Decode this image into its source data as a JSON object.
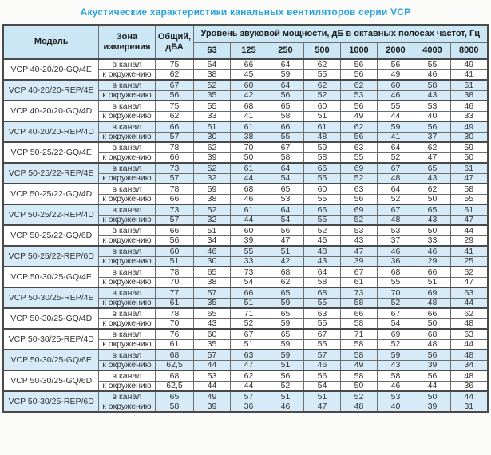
{
  "page": {
    "title": "Акустические характеристики канальных вентиляторов  серии VCP"
  },
  "colors": {
    "title_text": "#29a3db",
    "header_bg": "#cbe6f4",
    "shaded_row_bg": "#d6ebf7",
    "border_dark": "#4a4a4a",
    "border_light": "#a8a8a8",
    "cell_text": "#333333"
  },
  "table": {
    "headers": {
      "model": "Модель",
      "zone": "Зона измерения",
      "total": "Общий, дБА",
      "spl": "Уровень звуковой мощности, дБ в октавных полосах частот, Гц",
      "frequencies": [
        "63",
        "125",
        "250",
        "500",
        "1000",
        "2000",
        "4000",
        "8000"
      ]
    },
    "models": [
      {
        "name": "VCP 40-20/20-GQ/4E",
        "shaded": false,
        "rows": [
          {
            "zone": "в канал",
            "total": "75",
            "values": [
              54,
              66,
              64,
              62,
              56,
              56,
              55,
              49
            ]
          },
          {
            "zone": "к окружению",
            "total": "62",
            "values": [
              38,
              45,
              59,
              55,
              56,
              49,
              46,
              41
            ]
          }
        ]
      },
      {
        "name": "VCP 40-20/20-REP/4E",
        "shaded": true,
        "rows": [
          {
            "zone": "в канал",
            "total": "67",
            "values": [
              52,
              60,
              64,
              62,
              62,
              60,
              58,
              51
            ]
          },
          {
            "zone": "к окружению",
            "total": "56",
            "values": [
              35,
              42,
              56,
              52,
              53,
              46,
              43,
              38
            ]
          }
        ]
      },
      {
        "name": "VCP 40-20/20-GQ/4D",
        "shaded": false,
        "rows": [
          {
            "zone": "в канал",
            "total": "75",
            "values": [
              55,
              68,
              65,
              60,
              56,
              55,
              53,
              46
            ]
          },
          {
            "zone": "к окружению",
            "total": "62",
            "values": [
              33,
              41,
              58,
              51,
              49,
              44,
              40,
              33
            ]
          }
        ]
      },
      {
        "name": "VCP 40-20/20-REP/4D",
        "shaded": true,
        "rows": [
          {
            "zone": "в канал",
            "total": "66",
            "values": [
              51,
              61,
              66,
              61,
              62,
              59,
              56,
              49
            ]
          },
          {
            "zone": "к окружению",
            "total": "57",
            "values": [
              30,
              38,
              55,
              48,
              56,
              41,
              37,
              30
            ]
          }
        ]
      },
      {
        "name": "VCP 50-25/22-GQ/4E",
        "shaded": false,
        "rows": [
          {
            "zone": "в канал",
            "total": "78",
            "values": [
              62,
              70,
              67,
              59,
              63,
              64,
              62,
              59
            ]
          },
          {
            "zone": "к окружению",
            "total": "66",
            "values": [
              39,
              50,
              58,
              58,
              55,
              52,
              47,
              50
            ]
          }
        ]
      },
      {
        "name": "VCP 50-25/22-REP/4E",
        "shaded": true,
        "rows": [
          {
            "zone": "в канал",
            "total": "73",
            "values": [
              52,
              61,
              64,
              66,
              69,
              67,
              65,
              61
            ]
          },
          {
            "zone": "к окружению",
            "total": "57",
            "values": [
              32,
              44,
              54,
              55,
              52,
              48,
              43,
              47
            ]
          }
        ]
      },
      {
        "name": "VCP 50-25/22-GQ/4D",
        "shaded": false,
        "rows": [
          {
            "zone": "в канал",
            "total": "78",
            "values": [
              59,
              68,
              65,
              60,
              63,
              64,
              62,
              58
            ]
          },
          {
            "zone": "к окружению",
            "total": "66",
            "values": [
              38,
              46,
              53,
              55,
              56,
              52,
              50,
              55
            ]
          }
        ]
      },
      {
        "name": "VCP 50-25/22-REP/4D",
        "shaded": true,
        "rows": [
          {
            "zone": "в канал",
            "total": "73",
            "values": [
              52,
              61,
              64,
              66,
              69,
              67,
              65,
              61
            ]
          },
          {
            "zone": "к окружению",
            "total": "57",
            "values": [
              32,
              44,
              54,
              55,
              52,
              48,
              43,
              47
            ]
          }
        ]
      },
      {
        "name": "VCP 50-25/22-GQ/6D",
        "shaded": false,
        "rows": [
          {
            "zone": "в канал",
            "total": "66",
            "values": [
              51,
              60,
              56,
              52,
              53,
              53,
              50,
              44
            ]
          },
          {
            "zone": "к окружению",
            "total": "56",
            "values": [
              34,
              39,
              47,
              46,
              43,
              37,
              33,
              29
            ]
          }
        ]
      },
      {
        "name": "VCP 50-25/22-REP/6D",
        "shaded": true,
        "rows": [
          {
            "zone": "в канал",
            "total": "60",
            "values": [
              46,
              55,
              51,
              48,
              47,
              46,
              46,
              41
            ]
          },
          {
            "zone": "к окружению",
            "total": "51",
            "values": [
              30,
              33,
              42,
              43,
              39,
              36,
              29,
              25
            ]
          }
        ]
      },
      {
        "name": "VCP 50-30/25-GQ/4E",
        "shaded": false,
        "rows": [
          {
            "zone": "в канал",
            "total": "78",
            "values": [
              65,
              73,
              68,
              64,
              67,
              68,
              66,
              62
            ]
          },
          {
            "zone": "к окружению",
            "total": "70",
            "values": [
              38,
              54,
              62,
              58,
              61,
              55,
              51,
              47
            ]
          }
        ]
      },
      {
        "name": "VCP 50-30/25-REP/4E",
        "shaded": true,
        "rows": [
          {
            "zone": "в канал",
            "total": "77",
            "values": [
              57,
              66,
              65,
              68,
              73,
              70,
              69,
              63
            ]
          },
          {
            "zone": "к окружению",
            "total": "61",
            "values": [
              35,
              51,
              59,
              55,
              58,
              52,
              48,
              44
            ]
          }
        ]
      },
      {
        "name": "VCP 50-30/25-GQ/4D",
        "shaded": false,
        "rows": [
          {
            "zone": "в канал",
            "total": "78",
            "values": [
              65,
              71,
              65,
              63,
              66,
              67,
              66,
              62
            ]
          },
          {
            "zone": "к окружению",
            "total": "70",
            "values": [
              43,
              52,
              59,
              55,
              58,
              54,
              50,
              48
            ]
          }
        ]
      },
      {
        "name": "VCP 50-30/25-REP/4D",
        "shaded": false,
        "rows": [
          {
            "zone": "в канал",
            "total": "76",
            "values": [
              60,
              67,
              65,
              67,
              71,
              69,
              68,
              63
            ]
          },
          {
            "zone": "к окружению",
            "total": "61",
            "values": [
              35,
              51,
              59,
              55,
              58,
              52,
              48,
              44
            ]
          }
        ]
      },
      {
        "name": "VCP 50-30/25-GQ/6E",
        "shaded": true,
        "rows": [
          {
            "zone": "в канал",
            "total": "68",
            "values": [
              57,
              63,
              59,
              57,
              58,
              59,
              56,
              48
            ]
          },
          {
            "zone": "к окружению",
            "total": "62,5",
            "values": [
              44,
              47,
              51,
              46,
              49,
              43,
              39,
              34
            ]
          }
        ]
      },
      {
        "name": "VCP 50-30/25-GQ/6D",
        "shaded": false,
        "rows": [
          {
            "zone": "в канал",
            "total": "68",
            "values": [
              53,
              62,
              56,
              56,
              58,
              58,
              56,
              48
            ]
          },
          {
            "zone": "к окружению",
            "total": "62,5",
            "values": [
              44,
              44,
              52,
              54,
              50,
              46,
              44,
              36
            ]
          }
        ]
      },
      {
        "name": "VCP 50-30/25-REP/6D",
        "shaded": true,
        "rows": [
          {
            "zone": "в канал",
            "total": "65",
            "values": [
              49,
              57,
              51,
              51,
              52,
              53,
              50,
              44
            ]
          },
          {
            "zone": "к окружению",
            "total": "58",
            "values": [
              39,
              36,
              46,
              47,
              48,
              40,
              39,
              31
            ]
          }
        ]
      }
    ]
  }
}
